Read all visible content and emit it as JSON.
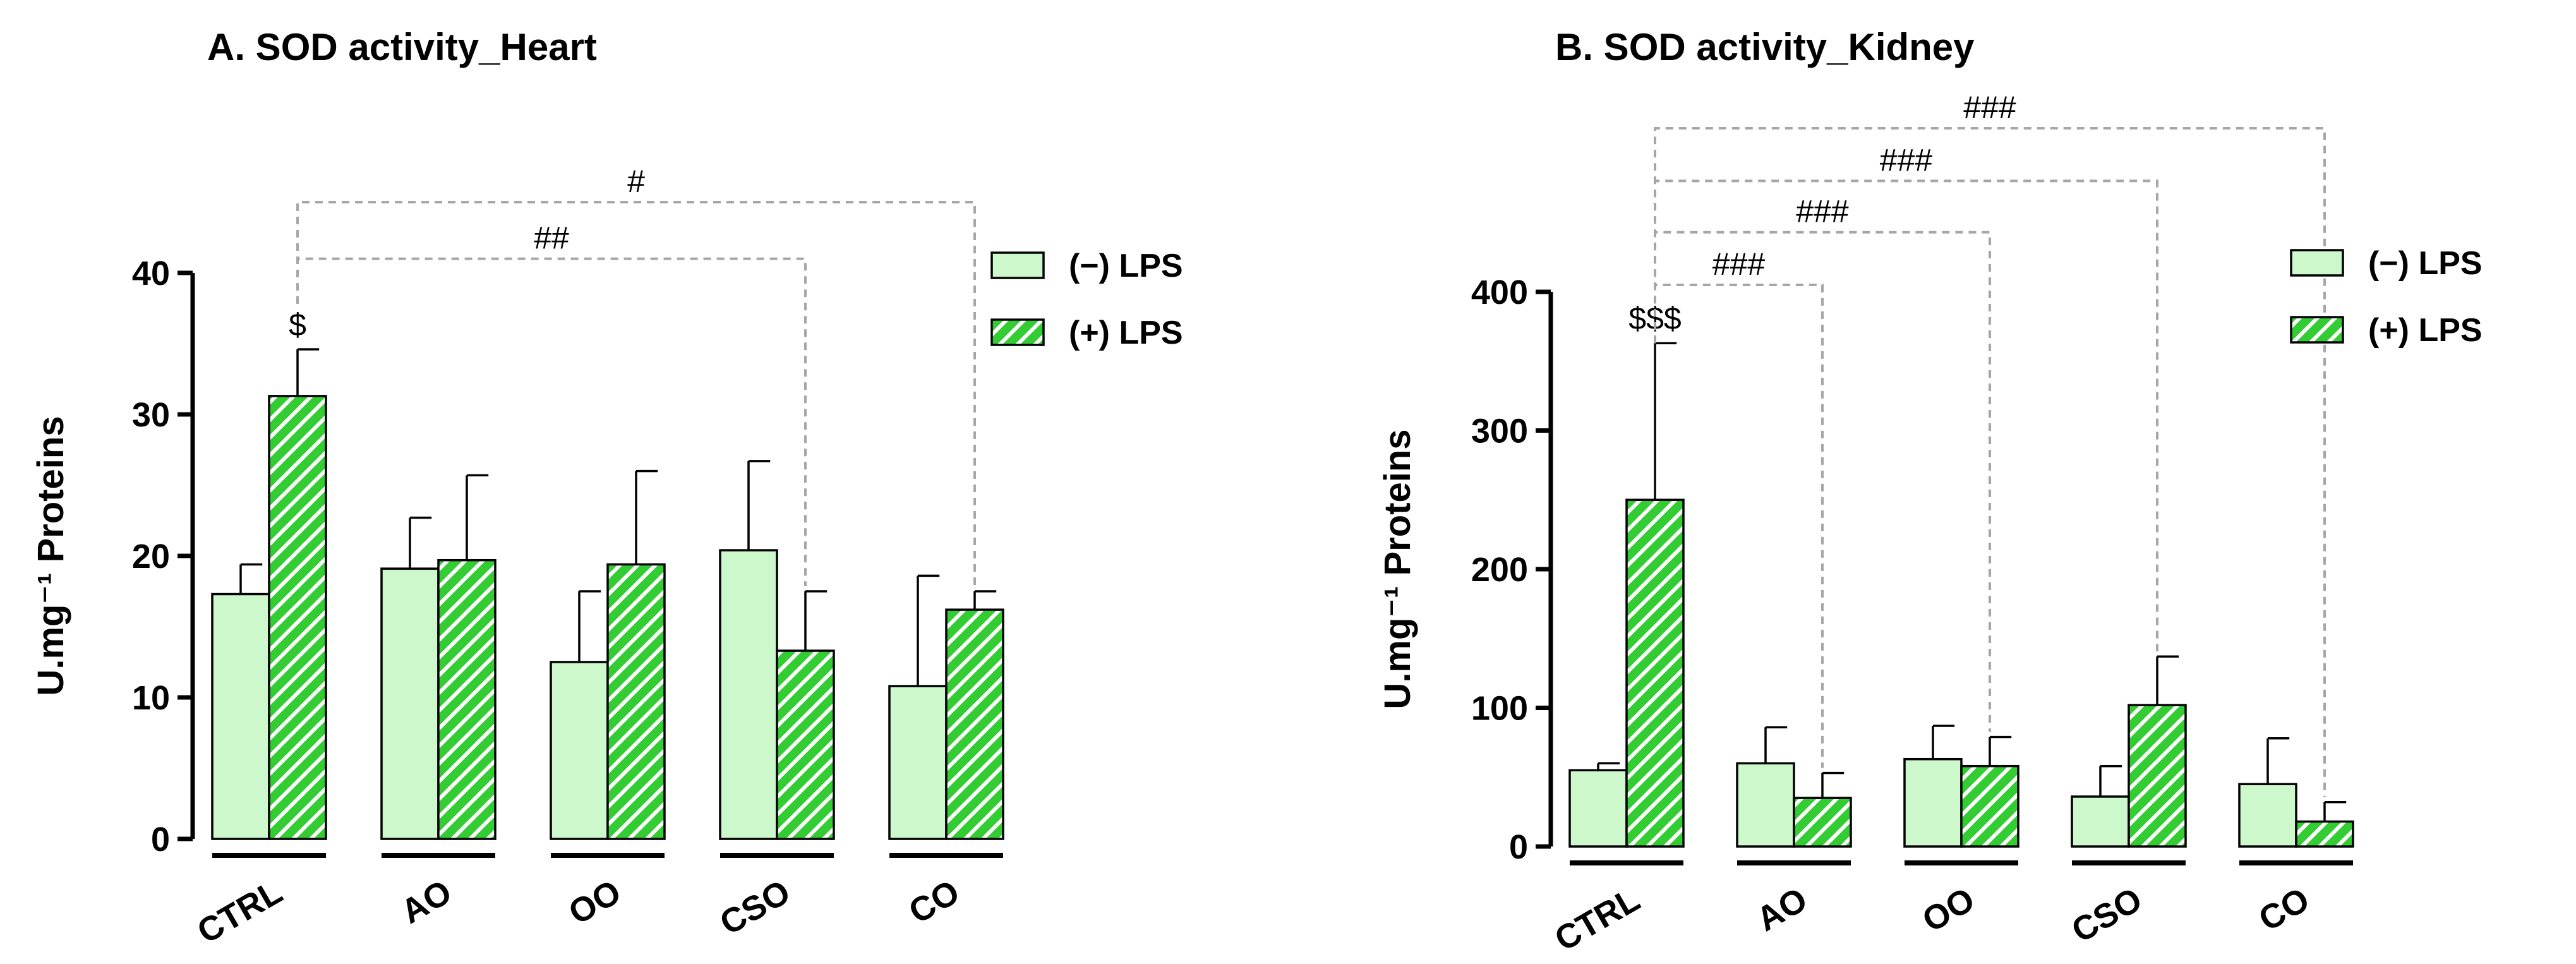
{
  "colors": {
    "neg_fill": "#ccf8cc",
    "pos_fill": "#33cc33",
    "pos_stripe": "#ffffff",
    "bar_stroke": "#000000",
    "bracket": "#a6a6a6"
  },
  "chart_data": [
    {
      "type": "bar",
      "title": "A. SOD activity_Heart",
      "xlabel": "",
      "ylabel": "U.mg⁻¹ Proteins",
      "ylim": [
        0,
        40
      ],
      "yticks": [
        0,
        10,
        20,
        30,
        40
      ],
      "grid": false,
      "legend_position": "top-right",
      "categories": [
        "CTRL",
        "AO",
        "OO",
        "CSO",
        "CO"
      ],
      "series": [
        {
          "name": "(−) LPS",
          "values": [
            17.3,
            19.1,
            12.5,
            20.4,
            10.8
          ],
          "errors": [
            2.1,
            3.6,
            5.0,
            6.3,
            7.8
          ]
        },
        {
          "name": "(+) LPS",
          "values": [
            31.3,
            19.7,
            19.4,
            13.3,
            16.2
          ],
          "errors": [
            3.3,
            6.0,
            6.6,
            4.2,
            1.3
          ]
        }
      ],
      "annotations": [
        {
          "text": "$",
          "category": "CTRL",
          "series": 1,
          "type": "bar-label"
        },
        {
          "text": "##",
          "from": "CTRL",
          "to": "CSO",
          "type": "bracket",
          "level": 41
        },
        {
          "text": "#",
          "from": "CTRL",
          "to": "CO",
          "type": "bracket",
          "level": 45
        }
      ]
    },
    {
      "type": "bar",
      "title": "B. SOD activity_Kidney",
      "xlabel": "",
      "ylabel": "U.mg⁻¹ Proteins",
      "ylim": [
        0,
        400
      ],
      "yticks": [
        0,
        100,
        200,
        300,
        400
      ],
      "grid": false,
      "legend_position": "top-right",
      "categories": [
        "CTRL",
        "AO",
        "OO",
        "CSO",
        "CO"
      ],
      "series": [
        {
          "name": "(−) LPS",
          "values": [
            55,
            60,
            63,
            36,
            45
          ],
          "errors": [
            5,
            26,
            24,
            22,
            33
          ]
        },
        {
          "name": "(+) LPS",
          "values": [
            250,
            35,
            58,
            102,
            18
          ],
          "errors": [
            113,
            18,
            21,
            35,
            14
          ]
        }
      ],
      "annotations": [
        {
          "text": "$$$",
          "category": "CTRL",
          "series": 1,
          "type": "bar-label"
        },
        {
          "text": "###",
          "from": "CTRL",
          "to": "AO",
          "type": "bracket",
          "level": 405
        },
        {
          "text": "###",
          "from": "CTRL",
          "to": "OO",
          "type": "bracket",
          "level": 443
        },
        {
          "text": "###",
          "from": "CTRL",
          "to": "CSO",
          "type": "bracket",
          "level": 480
        },
        {
          "text": "###",
          "from": "CTRL",
          "to": "CO",
          "type": "bracket",
          "level": 518
        }
      ]
    }
  ]
}
